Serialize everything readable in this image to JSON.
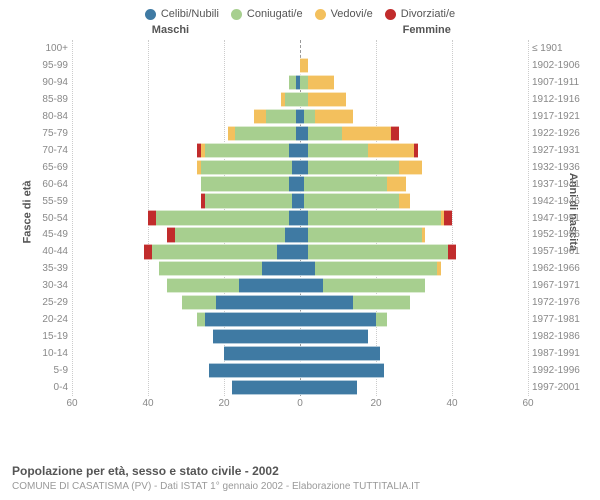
{
  "legend": [
    {
      "label": "Celibi/Nubili",
      "color": "#3f7aa3"
    },
    {
      "label": "Coniugati/e",
      "color": "#a7cf8f"
    },
    {
      "label": "Vedovi/e",
      "color": "#f3c05d"
    },
    {
      "label": "Divorziati/e",
      "color": "#c12c2c"
    }
  ],
  "titles": {
    "maschi": "Maschi",
    "femmine": "Femmine"
  },
  "subtitle": "Popolazione per età, sesso e stato civile - 2002",
  "sub2": "COMUNE DI CASATISMA (PV) - Dati ISTAT 1° gennaio 2002 - Elaborazione TUTTITALIA.IT",
  "yaxis_left_label": "Fasce di età",
  "yaxis_right_label": "Anni di nascita",
  "xlim": 60,
  "xticks": [
    60,
    40,
    20,
    0,
    20,
    40,
    60
  ],
  "colors": [
    "#3f7aa3",
    "#a7cf8f",
    "#f3c05d",
    "#c12c2c"
  ],
  "rows": [
    {
      "age": "100+",
      "birth": "≤ 1901",
      "m": [
        0,
        0,
        0,
        0
      ],
      "f": [
        0,
        0,
        0,
        0
      ]
    },
    {
      "age": "95-99",
      "birth": "1902-1906",
      "m": [
        0,
        0,
        0,
        0
      ],
      "f": [
        0,
        0,
        2,
        0
      ]
    },
    {
      "age": "90-94",
      "birth": "1907-1911",
      "m": [
        1,
        2,
        0,
        0
      ],
      "f": [
        0,
        2,
        7,
        0
      ]
    },
    {
      "age": "85-89",
      "birth": "1912-1916",
      "m": [
        0,
        4,
        1,
        0
      ],
      "f": [
        0,
        2,
        10,
        0
      ]
    },
    {
      "age": "80-84",
      "birth": "1917-1921",
      "m": [
        1,
        8,
        3,
        0
      ],
      "f": [
        1,
        3,
        10,
        0
      ]
    },
    {
      "age": "75-79",
      "birth": "1922-1926",
      "m": [
        1,
        16,
        2,
        0
      ],
      "f": [
        2,
        9,
        13,
        2
      ]
    },
    {
      "age": "70-74",
      "birth": "1927-1931",
      "m": [
        3,
        22,
        1,
        1
      ],
      "f": [
        2,
        16,
        12,
        1
      ]
    },
    {
      "age": "65-69",
      "birth": "1932-1936",
      "m": [
        2,
        24,
        1,
        0
      ],
      "f": [
        2,
        24,
        6,
        0
      ]
    },
    {
      "age": "60-64",
      "birth": "1937-1941",
      "m": [
        3,
        23,
        0,
        0
      ],
      "f": [
        1,
        22,
        5,
        0
      ]
    },
    {
      "age": "55-59",
      "birth": "1942-1946",
      "m": [
        2,
        23,
        0,
        1
      ],
      "f": [
        1,
        25,
        3,
        0
      ]
    },
    {
      "age": "50-54",
      "birth": "1947-1951",
      "m": [
        3,
        35,
        0,
        2
      ],
      "f": [
        2,
        35,
        1,
        2
      ]
    },
    {
      "age": "45-49",
      "birth": "1952-1956",
      "m": [
        4,
        29,
        0,
        2
      ],
      "f": [
        2,
        30,
        1,
        0
      ]
    },
    {
      "age": "40-44",
      "birth": "1957-1961",
      "m": [
        6,
        33,
        0,
        2
      ],
      "f": [
        2,
        37,
        0,
        2
      ]
    },
    {
      "age": "35-39",
      "birth": "1962-1966",
      "m": [
        10,
        27,
        0,
        0
      ],
      "f": [
        4,
        32,
        1,
        0
      ]
    },
    {
      "age": "30-34",
      "birth": "1967-1971",
      "m": [
        16,
        19,
        0,
        0
      ],
      "f": [
        6,
        27,
        0,
        0
      ]
    },
    {
      "age": "25-29",
      "birth": "1972-1976",
      "m": [
        22,
        9,
        0,
        0
      ],
      "f": [
        14,
        15,
        0,
        0
      ]
    },
    {
      "age": "20-24",
      "birth": "1977-1981",
      "m": [
        25,
        2,
        0,
        0
      ],
      "f": [
        20,
        3,
        0,
        0
      ]
    },
    {
      "age": "15-19",
      "birth": "1982-1986",
      "m": [
        23,
        0,
        0,
        0
      ],
      "f": [
        18,
        0,
        0,
        0
      ]
    },
    {
      "age": "10-14",
      "birth": "1987-1991",
      "m": [
        20,
        0,
        0,
        0
      ],
      "f": [
        21,
        0,
        0,
        0
      ]
    },
    {
      "age": "5-9",
      "birth": "1992-1996",
      "m": [
        24,
        0,
        0,
        0
      ],
      "f": [
        22,
        0,
        0,
        0
      ]
    },
    {
      "age": "0-4",
      "birth": "1997-2001",
      "m": [
        18,
        0,
        0,
        0
      ],
      "f": [
        15,
        0,
        0,
        0
      ]
    }
  ]
}
